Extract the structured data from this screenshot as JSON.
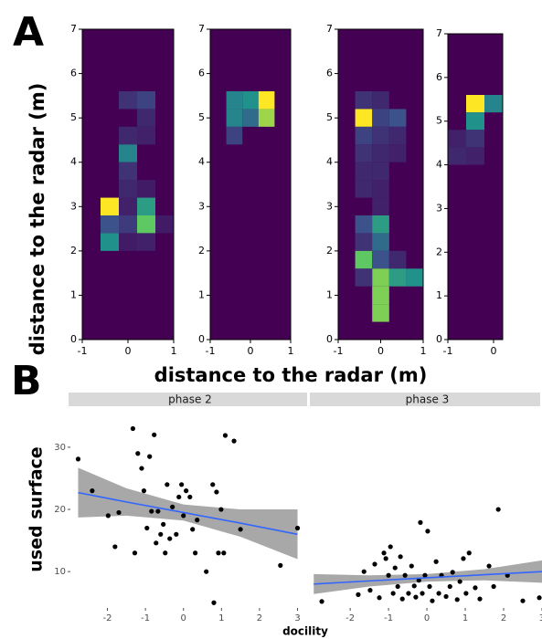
{
  "figure": {
    "panel_a_label": "A",
    "panel_a_ylabel": "distance to the radar (m)",
    "panel_a_xlabel": "distance to the radar (m)",
    "panel_b_label": "B",
    "panel_b_xlabel": "docility",
    "panel_b_ylabel": "used surface"
  },
  "chart_data": [
    {
      "type": "heatmap",
      "colormap": "viridis",
      "bin_size": 0.4,
      "xlim": [
        -1,
        1
      ],
      "ylim": [
        0,
        7
      ],
      "xticks": [
        -1,
        0,
        1
      ],
      "yticks": [
        0,
        1,
        2,
        3,
        4,
        5,
        6,
        7
      ],
      "cells": [
        [
          0,
          5.4,
          0.15
        ],
        [
          0.4,
          5.4,
          0.2
        ],
        [
          0.4,
          5.0,
          0.12
        ],
        [
          0.4,
          4.6,
          0.1
        ],
        [
          0,
          4.6,
          0.12
        ],
        [
          0,
          4.2,
          0.45
        ],
        [
          0,
          3.8,
          0.15
        ],
        [
          0,
          3.4,
          0.12
        ],
        [
          0.4,
          3.4,
          0.08
        ],
        [
          -0.4,
          3.0,
          1.0
        ],
        [
          0,
          3.0,
          0.1
        ],
        [
          0.4,
          3.0,
          0.55
        ],
        [
          -0.4,
          2.6,
          0.25
        ],
        [
          0,
          2.6,
          0.18
        ],
        [
          0.4,
          2.6,
          0.75
        ],
        [
          0.8,
          2.6,
          0.08
        ],
        [
          -0.4,
          2.2,
          0.5
        ],
        [
          0,
          2.2,
          0.08
        ],
        [
          0.4,
          2.2,
          0.1
        ]
      ]
    },
    {
      "type": "heatmap",
      "colormap": "viridis",
      "bin_size": 0.4,
      "xlim": [
        -1,
        1
      ],
      "ylim": [
        0,
        7
      ],
      "xticks": [
        -1,
        0,
        1
      ],
      "yticks": [
        0,
        1,
        2,
        3,
        4,
        5,
        6,
        7
      ],
      "cells": [
        [
          -0.4,
          5.4,
          0.45
        ],
        [
          0,
          5.4,
          0.5
        ],
        [
          0.4,
          5.4,
          1.0
        ],
        [
          -0.4,
          5.0,
          0.45
        ],
        [
          0,
          5.0,
          0.35
        ],
        [
          0.4,
          5.0,
          0.85
        ],
        [
          -0.4,
          4.6,
          0.2
        ]
      ]
    },
    {
      "type": "heatmap",
      "colormap": "viridis",
      "bin_size": 0.4,
      "xlim": [
        -1,
        1
      ],
      "ylim": [
        0,
        7
      ],
      "xticks": [
        -1,
        0,
        1
      ],
      "yticks": [
        0,
        1,
        2,
        3,
        4,
        5,
        6,
        7
      ],
      "cells": [
        [
          -0.4,
          5.4,
          0.15
        ],
        [
          -0.4,
          5.0,
          1.0
        ],
        [
          -0.4,
          4.6,
          0.2
        ],
        [
          -0.4,
          4.2,
          0.15
        ],
        [
          -0.4,
          3.8,
          0.12
        ],
        [
          -0.4,
          3.4,
          0.12
        ],
        [
          0,
          5.4,
          0.12
        ],
        [
          0,
          5.0,
          0.2
        ],
        [
          0,
          4.6,
          0.15
        ],
        [
          0,
          4.2,
          0.12
        ],
        [
          0,
          3.8,
          0.12
        ],
        [
          0,
          3.4,
          0.1
        ],
        [
          0,
          3.0,
          0.1
        ],
        [
          0,
          2.6,
          0.12
        ],
        [
          0,
          2.2,
          0.12
        ],
        [
          0.4,
          5.0,
          0.25
        ],
        [
          0.4,
          4.6,
          0.12
        ],
        [
          0.4,
          4.2,
          0.1
        ],
        [
          -0.4,
          2.6,
          0.25
        ],
        [
          -0.4,
          2.2,
          0.15
        ],
        [
          -0.4,
          1.8,
          0.75
        ],
        [
          0,
          2.6,
          0.55
        ],
        [
          0,
          2.2,
          0.35
        ],
        [
          0,
          1.8,
          0.25
        ],
        [
          0,
          1.4,
          0.8
        ],
        [
          0,
          1.0,
          0.8
        ],
        [
          0,
          0.6,
          0.8
        ],
        [
          0.4,
          1.8,
          0.12
        ],
        [
          0.4,
          1.4,
          0.55
        ],
        [
          0.8,
          1.4,
          0.5
        ],
        [
          -0.4,
          1.4,
          0.15
        ]
      ]
    },
    {
      "type": "heatmap",
      "colormap": "viridis",
      "bin_size": 0.4,
      "xlim": [
        -1,
        0.2
      ],
      "ylim": [
        0,
        7
      ],
      "xticks": [
        -1,
        0
      ],
      "yticks": [
        0,
        1,
        2,
        3,
        4,
        5,
        6,
        7
      ],
      "cells": [
        [
          -0.4,
          5.4,
          1.0
        ],
        [
          0,
          5.4,
          0.45
        ],
        [
          -0.4,
          5.0,
          0.5
        ],
        [
          -0.4,
          4.6,
          0.15
        ],
        [
          -0.8,
          4.6,
          0.1
        ],
        [
          -0.8,
          4.2,
          0.12
        ],
        [
          -0.4,
          4.2,
          0.1
        ]
      ]
    },
    {
      "type": "scatter",
      "title": "phase 2",
      "xlim": [
        -2.95,
        3.3
      ],
      "ylim": [
        4.3,
        36.3
      ],
      "xticks": [
        -2,
        -1,
        0,
        1,
        2,
        3
      ],
      "yticks": [
        10,
        20,
        30
      ],
      "color": "#000000",
      "x": [
        -2.77,
        -2.4,
        -1.98,
        -1.8,
        -1.7,
        -1.33,
        -1.28,
        -1.2,
        -1.1,
        -1.04,
        -0.96,
        -0.89,
        -0.84,
        -0.77,
        -0.72,
        -0.67,
        -0.6,
        -0.53,
        -0.48,
        -0.43,
        -0.36,
        -0.29,
        -0.19,
        -0.12,
        -0.05,
        0,
        0.07,
        0.17,
        0.24,
        0.31,
        0.36,
        0.6,
        0.77,
        0.8,
        0.87,
        0.92,
        0.99,
        1.06,
        1.1,
        1.33,
        1.5,
        2.55,
        3.0
      ],
      "y": [
        28.1,
        23,
        19,
        14,
        19.5,
        33,
        13,
        29,
        26.6,
        23,
        17,
        28.5,
        19.7,
        32,
        14.6,
        19.7,
        16,
        17.6,
        13,
        24,
        15.3,
        20.4,
        16,
        22,
        24,
        19,
        23,
        22,
        16.8,
        13,
        18.3,
        10,
        24,
        5,
        22.8,
        13,
        20,
        13,
        31.9,
        31,
        16.8,
        11,
        17
      ],
      "fit": {
        "color": "#3366ff",
        "band_color": "#999999",
        "x": [
          -2.77,
          -1.5,
          0,
          1.5,
          3
        ],
        "y": [
          22.7,
          21.2,
          19.5,
          17.8,
          16
        ],
        "lower": [
          18.7,
          19.0,
          18.2,
          15.6,
          12
        ],
        "upper": [
          26.7,
          23.4,
          20.8,
          20.0,
          20
        ]
      }
    },
    {
      "type": "scatter",
      "title": "phase 3",
      "xlim": [
        -2.98,
        3.0
      ],
      "ylim": [
        4.3,
        36.3
      ],
      "xticks": [
        -2,
        -1,
        0,
        1,
        2,
        3
      ],
      "color": "#000000",
      "x": [
        -2.74,
        -1.79,
        -1.64,
        -1.48,
        -1.36,
        -1.24,
        -1.12,
        -1.07,
        -1,
        -0.95,
        -0.88,
        -0.83,
        -0.76,
        -0.69,
        -0.64,
        -0.57,
        -0.48,
        -0.4,
        -0.33,
        -0.29,
        -0.21,
        -0.17,
        -0.12,
        -0.05,
        0.02,
        0.07,
        0.14,
        0.24,
        0.31,
        0.38,
        0.5,
        0.6,
        0.67,
        0.79,
        0.86,
        0.95,
        1.02,
        1.1,
        1.26,
        1.38,
        1.62,
        1.74,
        1.86,
        2.1,
        2.5,
        2.93
      ],
      "y": [
        5.2,
        6.3,
        10,
        7,
        11.2,
        5.8,
        13,
        12.1,
        9.4,
        14,
        6.5,
        10.6,
        7.6,
        12.4,
        5.6,
        9.4,
        6.5,
        10.9,
        7.7,
        5.9,
        8.6,
        17.9,
        6.5,
        9.4,
        16.5,
        7.6,
        5.3,
        11.6,
        6.5,
        9.4,
        6,
        7.6,
        9.9,
        5.5,
        8.4,
        12.1,
        6.5,
        13,
        7.4,
        5.6,
        10.9,
        7.6,
        20,
        9.4,
        5.3,
        5.8
      ],
      "fit": {
        "color": "#3366ff",
        "band_color": "#999999",
        "x": [
          -2.95,
          -1.5,
          0,
          1.5,
          3
        ],
        "y": [
          8.0,
          8.5,
          9.0,
          9.5,
          10.0
        ],
        "lower": [
          6.4,
          7.6,
          8.4,
          8.6,
          8.2
        ],
        "upper": [
          9.6,
          9.4,
          9.6,
          10.4,
          11.8
        ]
      }
    }
  ]
}
